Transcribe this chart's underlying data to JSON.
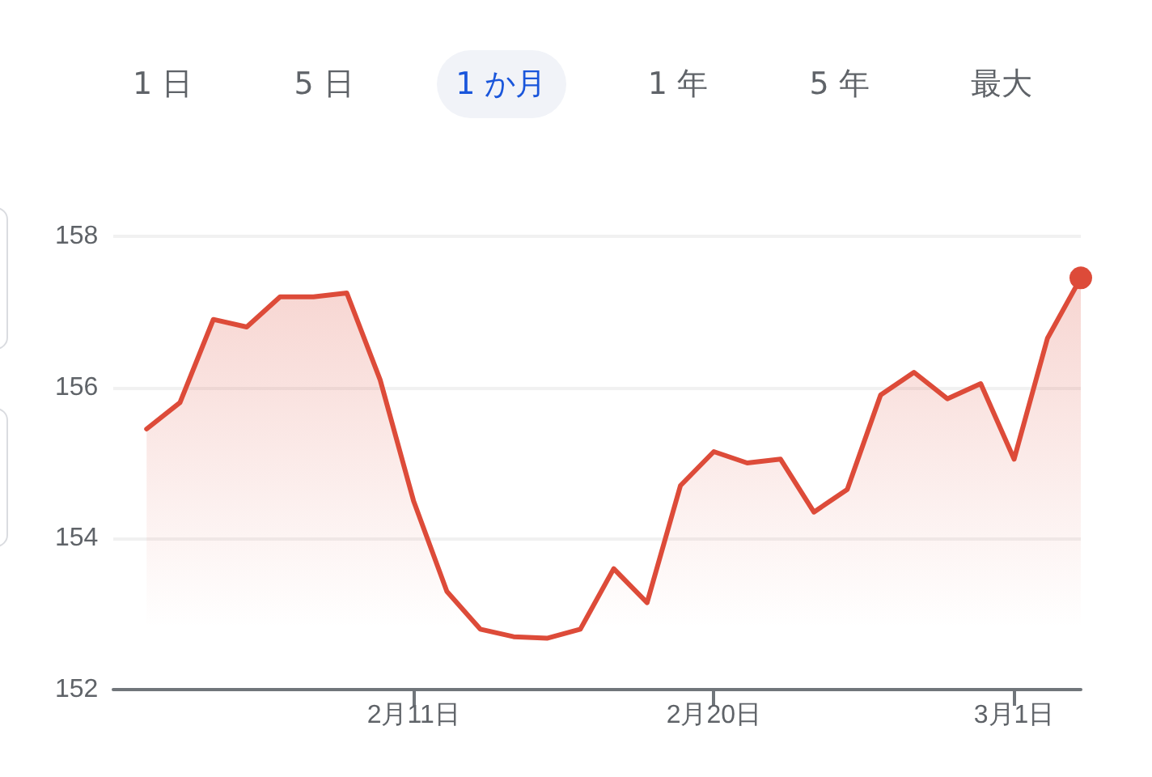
{
  "chart_data": {
    "type": "area",
    "annotations": [
      "1 日",
      "5 日",
      "1 か月",
      "1 年",
      "5 年",
      "最大"
    ],
    "x": [
      "--02-03",
      "--02-04",
      "--02-05",
      "--02-06",
      "--02-07",
      "--02-08",
      "--02-09",
      "--02-10",
      "--02-11",
      "--02-12",
      "--02-13",
      "--02-14",
      "--02-15",
      "--02-16",
      "--02-17",
      "--02-18",
      "--02-19",
      "--02-20",
      "--02-21",
      "--02-22",
      "--02-23",
      "--02-24",
      "--02-25",
      "--02-26",
      "--02-27",
      "--02-28",
      "--03-01",
      "--03-02",
      "--03-03"
    ],
    "series": [
      {
        "color": "#dd4b39",
        "values": [
          155.45,
          155.8,
          156.9,
          156.8,
          157.2,
          157.2,
          157.25,
          156.1,
          154.5,
          153.3,
          152.8,
          152.7,
          152.68,
          152.8,
          153.6,
          153.15,
          154.7,
          155.15,
          155.0,
          155.05,
          154.35,
          154.65,
          155.9,
          156.2,
          155.85,
          156.05,
          155.05,
          156.65,
          157.45
        ]
      }
    ],
    "xlim": [
      "--02-02",
      "--03-03"
    ],
    "xticks": [
      {
        "value": "--02-11",
        "label": "2月11日"
      },
      {
        "value": "--02-20",
        "label": "2月20日"
      },
      {
        "value": "--03-01",
        "label": "3月1日"
      }
    ],
    "ylim": [
      152,
      158
    ],
    "yticks": [
      152,
      154,
      156,
      158
    ],
    "grid": "y",
    "line_style": "solid"
  }
}
